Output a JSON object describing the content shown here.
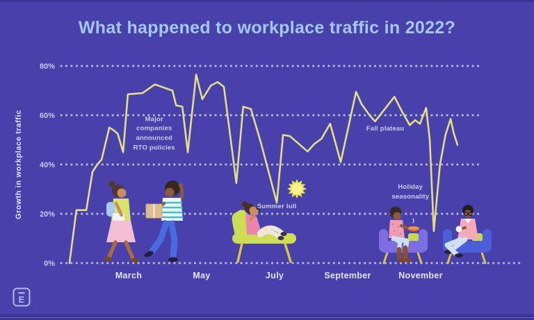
{
  "page": {
    "title": "What happened to workplace traffic in 2022?"
  },
  "y_axis": {
    "label": "Growth in workplace traffic"
  },
  "logo": {
    "letter": "E"
  },
  "colors": {
    "background": "#4841ab",
    "edge_strip": "#3a3494",
    "title_text": "#a4c8ec",
    "line": "#e5df82",
    "grid_dots": "#b9bce4",
    "tick_text": "#c9cbef",
    "month_text": "#e2e4f7",
    "annotation_text": "#c9cdf1",
    "logo": "#b4b8ee",
    "sun": "#f0e851"
  },
  "chart_data": {
    "type": "line",
    "title": "What happened to workplace traffic in 2022?",
    "xlabel": "",
    "ylabel": "Growth in workplace traffic",
    "x_unit": "months of 2022 (1 = January, 12 = December)",
    "ylim": [
      0,
      80
    ],
    "grid": "horizontal dotted lines at 0/20/40/60/80%",
    "legend": "none",
    "yticks": [
      {
        "pct": 80,
        "label": "80%"
      },
      {
        "pct": 60,
        "label": "60%"
      },
      {
        "pct": 40,
        "label": "40%"
      },
      {
        "pct": 20,
        "label": "20%"
      },
      {
        "pct": 0,
        "label": "0%"
      }
    ],
    "xticks": [
      {
        "month": 3,
        "label": "March"
      },
      {
        "month": 5,
        "label": "May"
      },
      {
        "month": 7,
        "label": "July"
      },
      {
        "month": 9,
        "label": "September"
      },
      {
        "month": 11,
        "label": "November"
      }
    ],
    "series": [
      {
        "name": "Growth in workplace traffic (%)",
        "points": [
          [
            1.38,
            0
          ],
          [
            1.57,
            21.5
          ],
          [
            1.84,
            21.5
          ],
          [
            2.01,
            37
          ],
          [
            2.14,
            40
          ],
          [
            2.26,
            42
          ],
          [
            2.47,
            55
          ],
          [
            2.58,
            54
          ],
          [
            2.7,
            52.5
          ],
          [
            2.85,
            45
          ],
          [
            2.98,
            68.5
          ],
          [
            3.38,
            69
          ],
          [
            3.72,
            72.5
          ],
          [
            4.01,
            71
          ],
          [
            4.2,
            70
          ],
          [
            4.3,
            64
          ],
          [
            4.47,
            63.5
          ],
          [
            4.62,
            45
          ],
          [
            4.85,
            76.5
          ],
          [
            5.02,
            66.5
          ],
          [
            5.25,
            72
          ],
          [
            5.44,
            73.5
          ],
          [
            5.61,
            71.5
          ],
          [
            5.95,
            32.5
          ],
          [
            6.14,
            63.5
          ],
          [
            6.35,
            62.5
          ],
          [
            6.62,
            49
          ],
          [
            7.06,
            24.5
          ],
          [
            7.23,
            52
          ],
          [
            7.42,
            51.5
          ],
          [
            7.9,
            45.3
          ],
          [
            8.09,
            48.4
          ],
          [
            8.28,
            50.4
          ],
          [
            8.52,
            56.6
          ],
          [
            8.81,
            41
          ],
          [
            9.23,
            69.5
          ],
          [
            9.38,
            64.5
          ],
          [
            9.6,
            60
          ],
          [
            9.75,
            57.5
          ],
          [
            10.28,
            67.5
          ],
          [
            10.49,
            61.5
          ],
          [
            10.7,
            56
          ],
          [
            10.85,
            58
          ],
          [
            10.98,
            56.5
          ],
          [
            11.15,
            63
          ],
          [
            11.25,
            50
          ],
          [
            11.36,
            13
          ],
          [
            11.53,
            40
          ],
          [
            11.68,
            52
          ],
          [
            11.82,
            58.5
          ],
          [
            11.9,
            53
          ],
          [
            12.01,
            48
          ]
        ]
      }
    ],
    "annotations": [
      {
        "text": "Major\ncompanies\nannounced\nRTO policies",
        "x_month": 3.7,
        "y_pct": 52.5
      },
      {
        "text": "Summer lull",
        "x_month": 7.06,
        "y_pct": 22.8
      },
      {
        "text": "Fall plateau",
        "x_month": 10.03,
        "y_pct": 54.4
      },
      {
        "text": "Holiday\nseasonality",
        "x_month": 10.72,
        "y_pct": 28.7
      }
    ],
    "illustrations": [
      "sun icon beside the July summer-lull dip",
      "two people walking to the office (spring ramp-up)",
      "person lounging on a chaise with a phone (summer lull)",
      "two people relaxing on couches (holiday seasonality)"
    ]
  }
}
